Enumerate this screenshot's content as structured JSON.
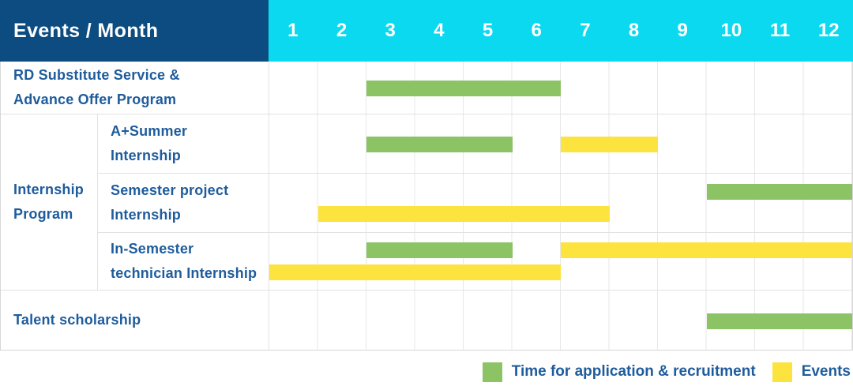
{
  "ui": {
    "header": {
      "title": "Events / Month",
      "months": [
        "1",
        "2",
        "3",
        "4",
        "5",
        "6",
        "7",
        "8",
        "9",
        "10",
        "11",
        "12"
      ]
    },
    "table": {
      "rows": [
        {
          "kind": "plain",
          "label_lines": [
            "RD Substitute Service &",
            "Advance Offer Program"
          ],
          "lanes": [
            [
              {
                "type": "recruitment",
                "start": 3,
                "end": 6
              }
            ]
          ]
        },
        {
          "kind": "group",
          "label_lines": [
            "Internship",
            "Program"
          ],
          "children": [
            {
              "label_lines": [
                "A+Summer",
                "Internship"
              ],
              "lanes": [
                [
                  {
                    "type": "recruitment",
                    "start": 3,
                    "end": 5
                  },
                  {
                    "type": "event",
                    "start": 7,
                    "end": 8
                  }
                ]
              ]
            },
            {
              "label_lines": [
                "Semester project",
                "Internship"
              ],
              "lanes": [
                [
                  {
                    "type": "recruitment",
                    "start": 10,
                    "end": 12
                  }
                ],
                [
                  {
                    "type": "event",
                    "start": 2,
                    "end": 7
                  }
                ]
              ]
            },
            {
              "label_lines": [
                "In-Semester",
                "technician Internship"
              ],
              "lanes": [
                [
                  {
                    "type": "recruitment",
                    "start": 3,
                    "end": 5
                  },
                  {
                    "type": "event",
                    "start": 7,
                    "end": 12
                  }
                ],
                [
                  {
                    "type": "event",
                    "start": 1,
                    "end": 6
                  }
                ]
              ]
            }
          ]
        },
        {
          "kind": "plain",
          "label_lines": [
            "Talent scholarship"
          ],
          "lanes": [
            [
              {
                "type": "recruitment",
                "start": 10,
                "end": 12
              }
            ]
          ]
        }
      ]
    },
    "legend": [
      {
        "key": "recruitment",
        "label": "Time for application & recruitment"
      },
      {
        "key": "event",
        "label": "Events"
      }
    ],
    "colors": {
      "header_bg": "#0C4C80",
      "months_bg": "#0BD9EF",
      "recruitment": "#8BC365",
      "event": "#FCE33E",
      "label_text": "#1E5C9C",
      "grid": "#E7E7E7",
      "rowline": "#E2E2E2",
      "border": "#D7D7D7"
    }
  },
  "chart_data": {
    "type": "bar",
    "variant": "gantt",
    "title": "Events / Month",
    "x": {
      "label": "Month",
      "ticks": [
        1,
        2,
        3,
        4,
        5,
        6,
        7,
        8,
        9,
        10,
        11,
        12
      ],
      "range": [
        1,
        12
      ]
    },
    "grid": true,
    "legend_position": "bottom-right",
    "series": [
      {
        "name": "Time for application & recruitment",
        "color": "#8BC365"
      },
      {
        "name": "Events",
        "color": "#FCE33E"
      }
    ],
    "rows": [
      {
        "category": "RD Substitute Service & Advance Offer Program",
        "group": null,
        "bars": [
          {
            "series": "Time for application & recruitment",
            "start_month": 3,
            "end_month": 6
          }
        ]
      },
      {
        "category": "A+Summer Internship",
        "group": "Internship Program",
        "bars": [
          {
            "series": "Time for application & recruitment",
            "start_month": 3,
            "end_month": 5
          },
          {
            "series": "Events",
            "start_month": 7,
            "end_month": 8
          }
        ]
      },
      {
        "category": "Semester project Internship",
        "group": "Internship Program",
        "bars": [
          {
            "series": "Time for application & recruitment",
            "start_month": 10,
            "end_month": 12
          },
          {
            "series": "Events",
            "start_month": 2,
            "end_month": 7
          }
        ]
      },
      {
        "category": "In-Semester technician Internship",
        "group": "Internship Program",
        "bars": [
          {
            "series": "Time for application & recruitment",
            "start_month": 3,
            "end_month": 5
          },
          {
            "series": "Events",
            "start_month": 7,
            "end_month": 12
          },
          {
            "series": "Events",
            "start_month": 1,
            "end_month": 6
          }
        ]
      },
      {
        "category": "Talent scholarship",
        "group": null,
        "bars": [
          {
            "series": "Time for application & recruitment",
            "start_month": 10,
            "end_month": 12
          }
        ]
      }
    ]
  }
}
